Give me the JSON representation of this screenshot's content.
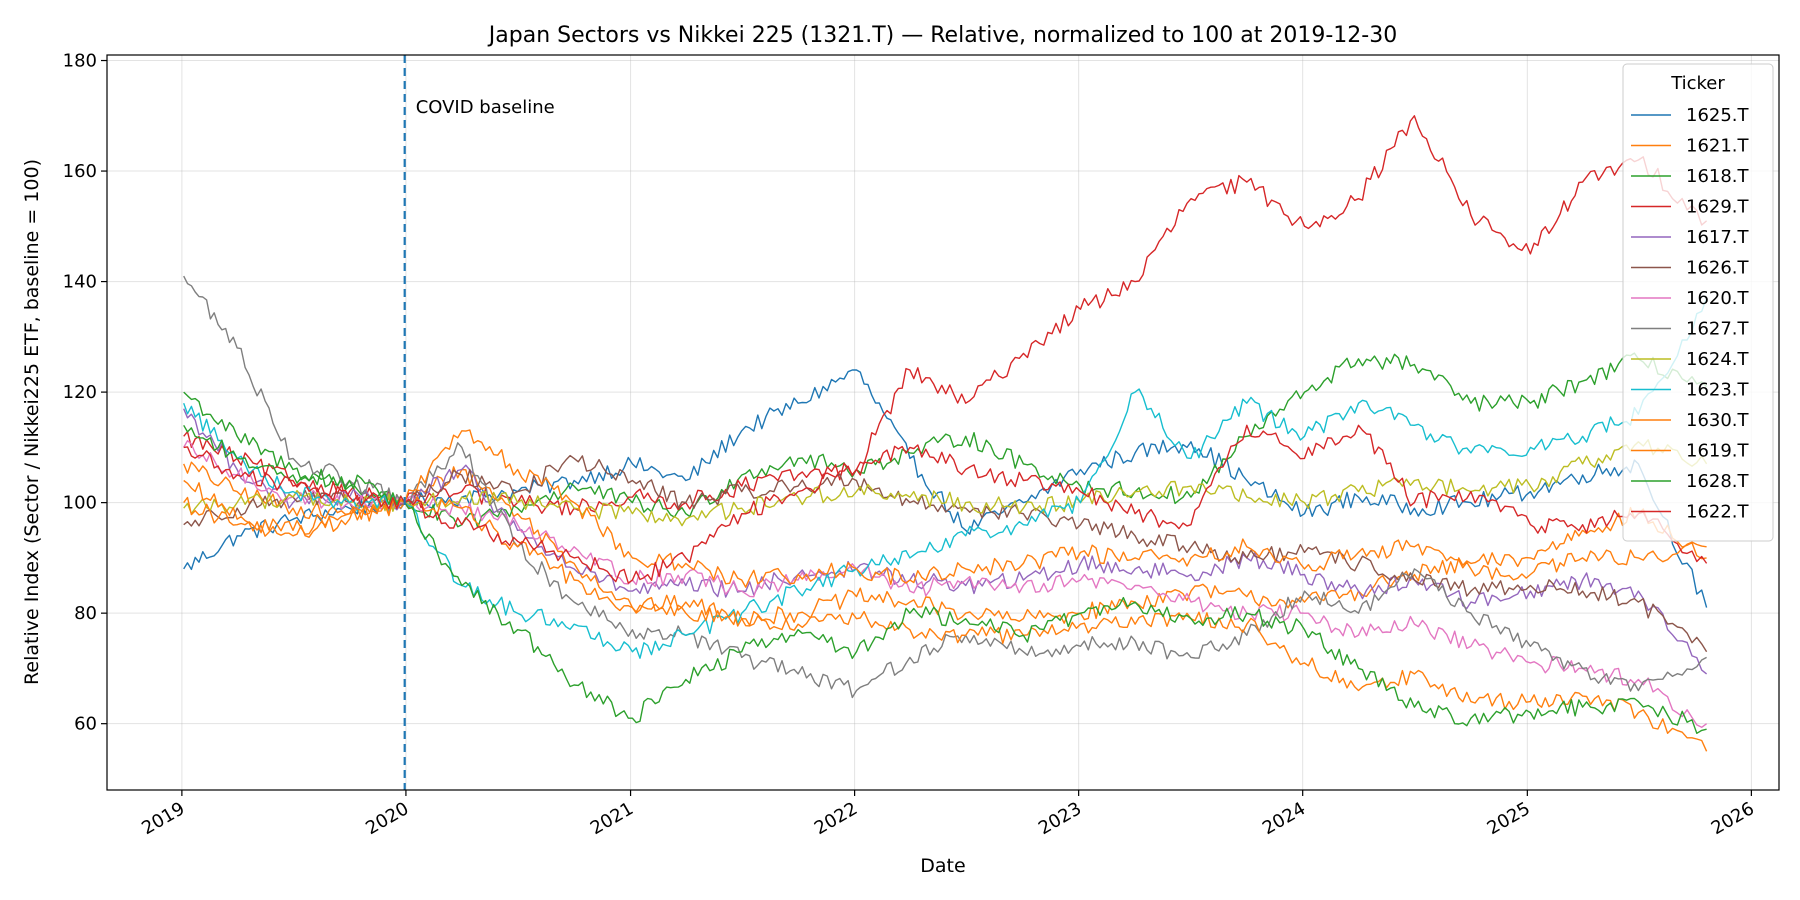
{
  "chart_data": {
    "type": "line",
    "title": "Japan Sectors vs Nikkei 225 (1321.T) — Relative, normalized to 100 at 2019-12-30",
    "xlabel": "Date",
    "ylabel": "Relative Index (Sector / Nikkei225 ETF, baseline = 100)",
    "xlim": [
      "2018-09-01",
      "2026-02-15"
    ],
    "ylim": [
      48,
      181
    ],
    "x_ticks": [
      "2019-01-01",
      "2020-01-01",
      "2021-01-01",
      "2022-01-01",
      "2023-01-01",
      "2024-01-01",
      "2025-01-01",
      "2026-01-01"
    ],
    "x_tick_labels": [
      "2019",
      "2020",
      "2021",
      "2022",
      "2023",
      "2024",
      "2025",
      "2026"
    ],
    "y_ticks": [
      60,
      80,
      100,
      120,
      140,
      160,
      180
    ],
    "y_tick_labels": [
      "60",
      "80",
      "100",
      "120",
      "140",
      "160",
      "180"
    ],
    "grid": true,
    "legend": {
      "title": "Ticker",
      "placement": "top-right"
    },
    "annotations": [
      {
        "type": "vline",
        "x": "2019-12-30",
        "style": "dashed",
        "color": "#1f77b4",
        "label": "COVID baseline"
      }
    ],
    "x": [
      "2019-01-04",
      "2019-04-01",
      "2019-07-01",
      "2019-10-01",
      "2019-12-30",
      "2020-04-01",
      "2020-07-01",
      "2020-10-01",
      "2021-01-04",
      "2021-04-01",
      "2021-07-01",
      "2021-10-01",
      "2022-01-04",
      "2022-04-01",
      "2022-07-01",
      "2022-10-03",
      "2023-01-04",
      "2023-04-03",
      "2023-07-03",
      "2023-10-02",
      "2024-01-04",
      "2024-04-01",
      "2024-07-01",
      "2024-10-01",
      "2025-01-06",
      "2025-04-01",
      "2025-07-01",
      "2025-10-20"
    ],
    "series": [
      {
        "name": "1625.T",
        "color": "#1f77b4",
        "values": [
          88,
          94,
          97,
          99,
          100,
          101,
          102,
          104,
          107,
          104,
          113,
          118,
          124,
          108,
          95,
          100,
          106,
          109,
          111,
          104,
          98,
          101,
          99,
          100,
          102,
          105,
          107,
          81
        ]
      },
      {
        "name": "1621.T",
        "color": "#ff7f0e",
        "values": [
          107,
          102,
          99,
          98,
          100,
          106,
          98,
          89,
          81,
          82,
          79,
          80,
          83,
          82,
          80,
          79,
          80,
          82,
          84,
          83,
          82,
          84,
          87,
          89,
          90,
          95,
          98,
          90
        ]
      },
      {
        "name": "1618.T",
        "color": "#2ca02c",
        "values": [
          120,
          112,
          106,
          103,
          100,
          96,
          99,
          103,
          100,
          98,
          105,
          108,
          106,
          109,
          112,
          107,
          103,
          102,
          101,
          112,
          120,
          126,
          125,
          118,
          118,
          122,
          126,
          121
        ]
      },
      {
        "name": "1629.T",
        "color": "#d62728",
        "values": [
          112,
          108,
          104,
          102,
          100,
          102,
          100,
          99,
          101,
          100,
          103,
          105,
          106,
          124,
          118,
          127,
          135,
          140,
          155,
          158,
          150,
          155,
          170,
          152,
          145,
          158,
          162,
          151
        ]
      },
      {
        "name": "1617.T",
        "color": "#9467bd",
        "values": [
          117,
          106,
          100,
          101,
          100,
          106,
          95,
          88,
          84,
          85,
          84,
          87,
          88,
          86,
          85,
          86,
          89,
          88,
          87,
          90,
          87,
          84,
          86,
          82,
          84,
          86,
          84,
          69
        ]
      },
      {
        "name": "1626.T",
        "color": "#8c564b",
        "values": [
          96,
          99,
          101,
          100,
          100,
          105,
          102,
          108,
          104,
          100,
          102,
          103,
          104,
          100,
          99,
          98,
          96,
          94,
          92,
          90,
          91,
          89,
          86,
          84,
          85,
          84,
          82,
          73
        ]
      },
      {
        "name": "1620.T",
        "color": "#e377c2",
        "values": [
          110,
          105,
          101,
          100,
          100,
          99,
          96,
          92,
          86,
          87,
          84,
          86,
          88,
          84,
          86,
          85,
          86,
          85,
          82,
          80,
          80,
          76,
          78,
          74,
          71,
          70,
          68,
          60
        ]
      },
      {
        "name": "1627.T",
        "color": "#7f7f7f",
        "values": [
          141,
          128,
          108,
          104,
          100,
          110,
          92,
          82,
          77,
          76,
          72,
          69,
          66,
          72,
          76,
          73,
          74,
          75,
          72,
          76,
          84,
          80,
          88,
          80,
          74,
          70,
          66,
          72
        ]
      },
      {
        "name": "1624.T",
        "color": "#bcbd22",
        "values": [
          99,
          100,
          101,
          100,
          100,
          101,
          100,
          99,
          98,
          97,
          99,
          101,
          102,
          101,
          100,
          99,
          100,
          102,
          103,
          101,
          100,
          102,
          104,
          102,
          103,
          107,
          111,
          107
        ]
      },
      {
        "name": "1623.T",
        "color": "#17becf",
        "values": [
          118,
          108,
          102,
          100,
          100,
          85,
          80,
          78,
          73,
          76,
          80,
          84,
          88,
          90,
          94,
          96,
          100,
          120,
          108,
          118,
          112,
          118,
          114,
          109,
          110,
          112,
          116,
          137
        ]
      },
      {
        "name": "1630.T",
        "color": "#ff7f0e",
        "values": [
          104,
          97,
          95,
          98,
          100,
          113,
          106,
          100,
          90,
          89,
          86,
          87,
          88,
          86,
          88,
          89,
          91,
          90,
          90,
          92,
          88,
          91,
          92,
          88,
          87,
          90,
          90,
          92
        ]
      },
      {
        "name": "1619.T",
        "color": "#ff7f0e",
        "values": [
          100,
          96,
          94,
          97,
          100,
          99,
          92,
          86,
          81,
          80,
          79,
          78,
          79,
          77,
          76,
          76,
          78,
          78,
          79,
          78,
          71,
          66,
          69,
          64,
          64,
          65,
          62,
          55
        ]
      },
      {
        "name": "1628.T",
        "color": "#2ca02c",
        "values": [
          114,
          108,
          105,
          104,
          100,
          85,
          77,
          67,
          61,
          68,
          73,
          77,
          73,
          80,
          79,
          76,
          80,
          82,
          79,
          80,
          77,
          70,
          63,
          61,
          62,
          63,
          64,
          59
        ]
      },
      {
        "name": "1622.T",
        "color": "#d62728",
        "values": [
          110,
          105,
          103,
          101,
          100,
          96,
          93,
          90,
          86,
          90,
          98,
          102,
          106,
          110,
          106,
          104,
          102,
          98,
          96,
          114,
          108,
          114,
          100,
          102,
          96,
          96,
          98,
          89
        ]
      }
    ]
  }
}
